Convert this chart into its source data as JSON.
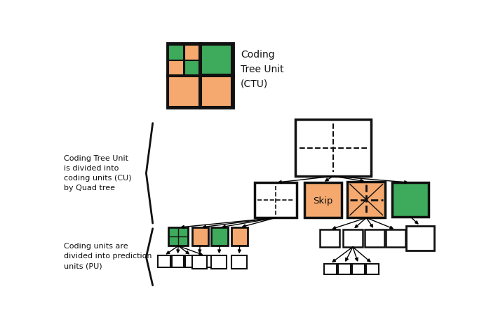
{
  "bg_color": "#ffffff",
  "orange": "#f5a96e",
  "green": "#3daa5c",
  "dark": "#111111",
  "title": "Coding\nTree Unit\n(CTU)",
  "label_ctu": "Coding Tree Unit\nis divided into\ncoding units (CU)\nby Quad tree",
  "label_pu": "Coding units are\ndivided into prediction\nunits (PU)"
}
